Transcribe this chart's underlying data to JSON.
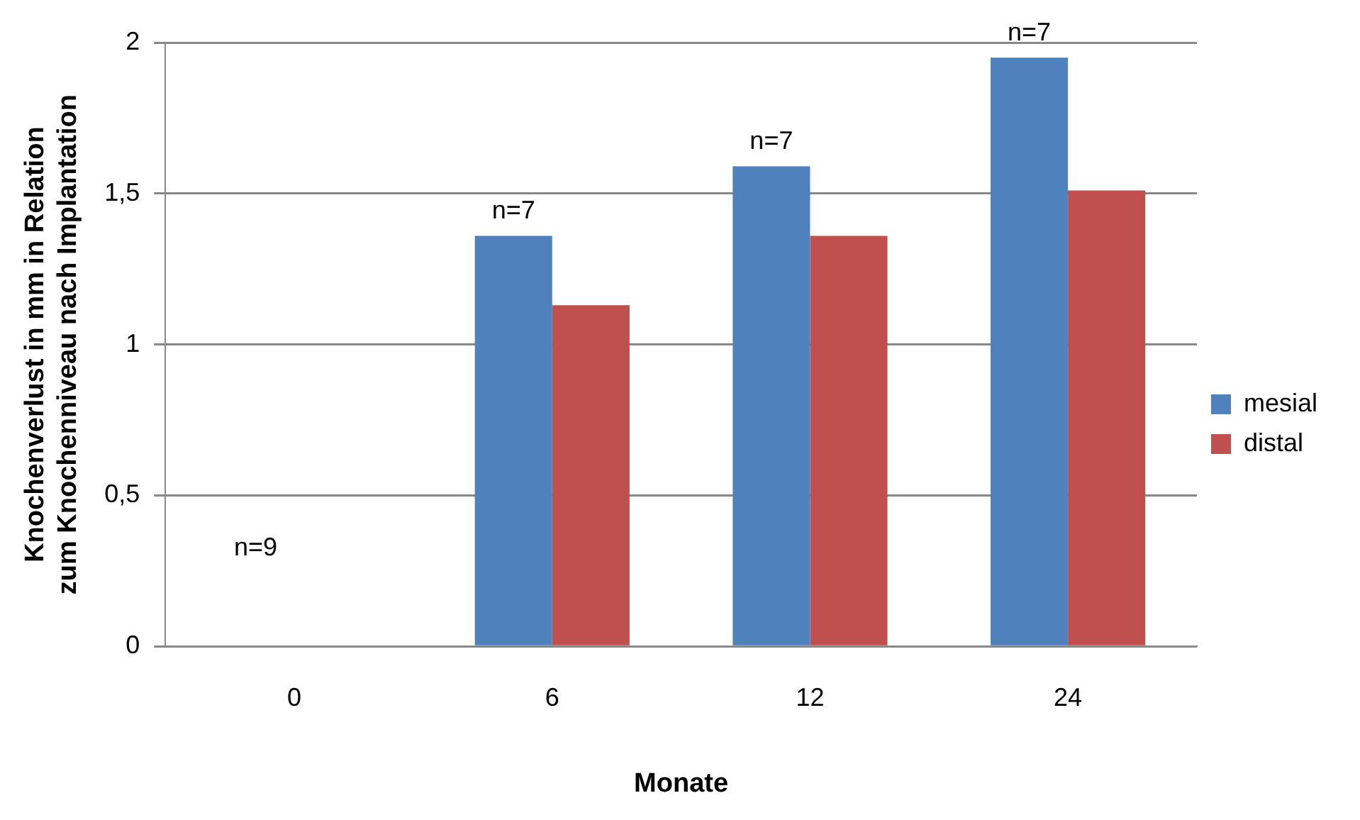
{
  "chart_data": {
    "type": "bar",
    "xlabel": "Monate",
    "ylabel": "Knochenverlust in mm in Relation zum Knochenniveau nach Implantation",
    "categories": [
      "0",
      "6",
      "12",
      "24"
    ],
    "series": [
      {
        "name": "mesial",
        "color": "#4f81bd",
        "values": [
          0,
          1.36,
          1.59,
          1.95
        ]
      },
      {
        "name": "distal",
        "color": "#c0504d",
        "values": [
          0,
          1.13,
          1.36,
          1.51
        ]
      }
    ],
    "ylim": [
      0,
      2
    ],
    "yticks": [
      0,
      {
        "value": 0.5,
        "label": "0,5"
      },
      1,
      {
        "value": 1.5,
        "label": "1,5"
      },
      2
    ],
    "grid": "y",
    "legend": "right",
    "annotations": [
      "n=9",
      {
        "text": "n=7",
        "x": "6",
        "y": 1.36
      },
      {
        "text": "n=7",
        "x": "12",
        "y": 1.59
      },
      {
        "text": "n=7",
        "x": "24",
        "y": 1.95
      }
    ]
  }
}
